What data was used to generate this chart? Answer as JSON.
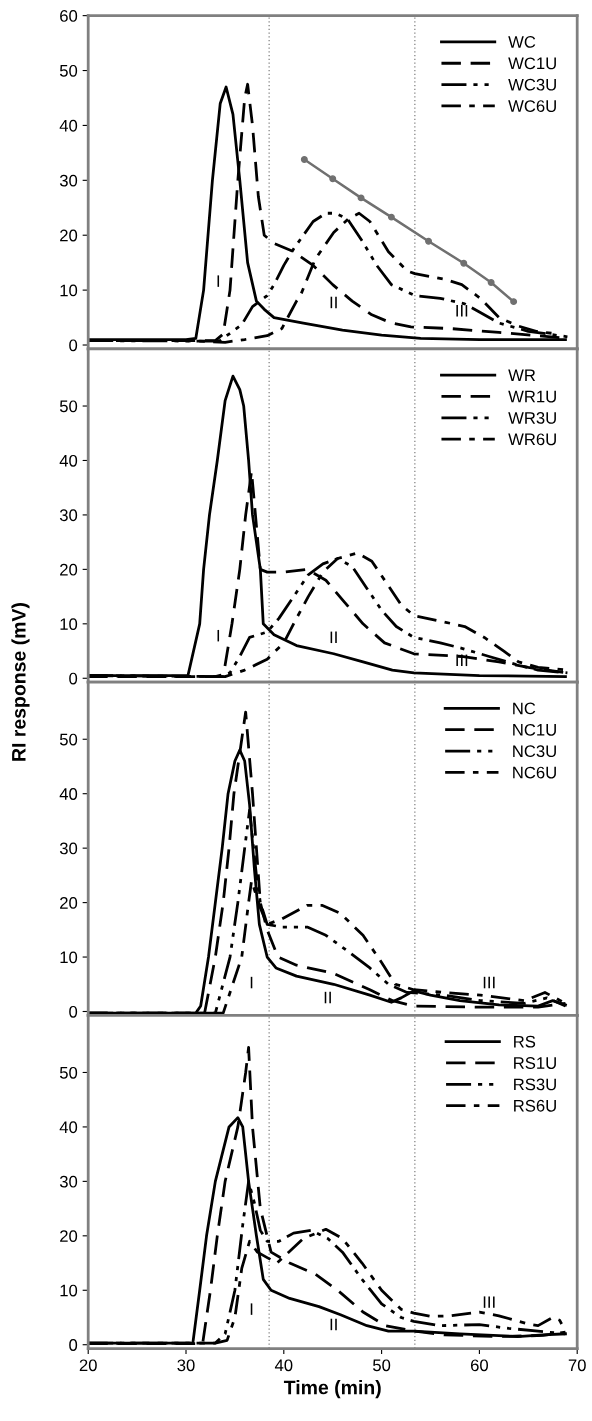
{
  "chart_data": [
    {
      "type": "line",
      "xlim": [
        20,
        70
      ],
      "xticks": [
        20,
        30,
        40,
        50,
        60,
        70
      ],
      "ylim": [
        -0.7,
        60
      ],
      "yticks": [
        0,
        10,
        20,
        30,
        40,
        50,
        60
      ],
      "tick_labels": "y",
      "legend": "top right",
      "grid": false,
      "ref_lines": [
        {
          "axis": "x",
          "value": 38.5,
          "color": "#808080",
          "line_style": "dotted"
        },
        {
          "axis": "x",
          "value": 53.4,
          "color": "#808080",
          "line_style": "dotted"
        }
      ],
      "annotations": [
        "I",
        "II",
        "III"
      ],
      "series": [
        {
          "name": "WC",
          "color": "#000000",
          "line_style": "solid",
          "x": [
            20,
            30,
            31,
            31.8,
            32.7,
            33.5,
            34.1,
            34.8,
            35.5,
            36.3,
            37.2,
            38,
            39,
            42,
            46,
            50,
            54,
            60,
            68.8
          ],
          "values": [
            1,
            1,
            1.2,
            10,
            30,
            44,
            47,
            42,
            30,
            15,
            8,
            6.5,
            5,
            4,
            2.7,
            1.8,
            1.2,
            1,
            1
          ]
        },
        {
          "name": "WC1U",
          "color": "#000000",
          "line_style": "dashed",
          "x": [
            20,
            33,
            33.8,
            34.5,
            35.3,
            36,
            36.3,
            36.8,
            37.4,
            38,
            39,
            41,
            43,
            45,
            47,
            49,
            51,
            53,
            57,
            62,
            66,
            69
          ],
          "values": [
            0.8,
            0.8,
            2,
            10,
            30,
            45,
            47.5,
            40,
            27,
            20,
            18.5,
            17,
            14.5,
            11,
            8,
            5.5,
            4,
            3.3,
            3,
            2.3,
            1.7,
            1.2
          ]
        },
        {
          "name": "WC3U",
          "color": "#000000",
          "line_style": "dashdotdot",
          "x": [
            20,
            33.4,
            35.7,
            36.8,
            38.3,
            39,
            40,
            41,
            42,
            43,
            44.3,
            45.3,
            46.5,
            48,
            49.5,
            51,
            53.4,
            56,
            58.5,
            60,
            62,
            65,
            69
          ],
          "values": [
            0.8,
            0.7,
            3.7,
            7,
            9,
            11,
            14.5,
            17.5,
            20,
            22.5,
            24,
            24,
            23,
            19,
            14.5,
            11,
            9,
            8.5,
            7.5,
            6,
            4,
            2.5,
            1.5
          ]
        },
        {
          "name": "WC6U",
          "color": "#000000",
          "line_style": "dashdot",
          "x": [
            20,
            30,
            34,
            36,
            38.3,
            39.8,
            41.3,
            41.7,
            43.2,
            45.1,
            46.6,
            47.7,
            48.8,
            50.7,
            52.6,
            53.4,
            56.4,
            58.2,
            60.1,
            62,
            63.9,
            65.8,
            68
          ],
          "values": [
            0.8,
            0.8,
            0.5,
            1,
            1.7,
            3,
            8,
            9,
            15.6,
            20.5,
            23,
            24,
            22.5,
            17,
            13.5,
            13,
            12,
            11,
            8.5,
            5,
            3.5,
            2.5,
            2
          ]
        },
        {
          "color": "#707070",
          "line_style": "solid",
          "marker": "circle",
          "x": [
            42.1,
            45,
            47.9,
            51,
            54.8,
            58.4,
            61.2,
            63.5
          ],
          "values": [
            33.8,
            30.3,
            26.8,
            23.3,
            18.9,
            14.9,
            11.4,
            7.9
          ]
        }
      ]
    },
    {
      "type": "line",
      "xlim": [
        20,
        70
      ],
      "xticks": [
        20,
        30,
        40,
        50,
        60,
        70
      ],
      "ylim": [
        -0.7,
        60.5
      ],
      "yticks": [
        0,
        10,
        20,
        30,
        40,
        50
      ],
      "tick_labels": "y",
      "legend": "top right",
      "grid": false,
      "ref_lines": [
        {
          "axis": "x",
          "value": 38.5,
          "color": "#808080",
          "line_style": "dotted"
        },
        {
          "axis": "x",
          "value": 53.4,
          "color": "#808080",
          "line_style": "dotted"
        }
      ],
      "annotations": [
        "I",
        "II",
        "III"
      ],
      "series": [
        {
          "name": "WR",
          "color": "#000000",
          "line_style": "solid",
          "x": [
            20,
            30.2,
            31.4,
            31.8,
            32.4,
            33.2,
            34,
            34.8,
            35.5,
            35.9,
            36.4,
            36.8,
            37.6,
            37.9,
            39,
            41.3,
            45.1,
            48.1,
            51.1,
            53.3,
            60,
            68.8
          ],
          "values": [
            0.5,
            0.5,
            10,
            20,
            30,
            40,
            51,
            55.5,
            53,
            50,
            40,
            30,
            20,
            10,
            8,
            6,
            4.5,
            3,
            1.5,
            1,
            0.5,
            0.3
          ]
        },
        {
          "name": "WR1U",
          "color": "#000000",
          "line_style": "dashed",
          "x": [
            20,
            33.8,
            34.7,
            35.5,
            36.1,
            36.7,
            37.1,
            37.6,
            38.3,
            40,
            42.4,
            44.3,
            46.2,
            48.1,
            50.3,
            53.3,
            58.2,
            62,
            65,
            68.8
          ],
          "values": [
            0.3,
            0.3,
            10,
            20,
            30,
            38,
            30,
            20,
            19.5,
            19.5,
            20,
            18,
            14,
            10,
            6.5,
            4.5,
            4,
            3,
            2,
            1
          ]
        },
        {
          "name": "WR3U",
          "color": "#000000",
          "line_style": "dashdotdot",
          "x": [
            20,
            33,
            34.5,
            35.5,
            36.5,
            38.3,
            39.5,
            41,
            42.5,
            44,
            45.5,
            47,
            48.5,
            50,
            51.5,
            53.3,
            56,
            58.2,
            61,
            63.8,
            66,
            69
          ],
          "values": [
            0.5,
            0.3,
            1,
            4,
            7.5,
            8.5,
            11,
            15,
            19,
            21,
            22,
            20.5,
            16.5,
            12.5,
            9.5,
            7.5,
            6.5,
            5.5,
            4,
            2.5,
            1.5,
            1
          ]
        },
        {
          "name": "WR6U",
          "color": "#000000",
          "line_style": "dashdot",
          "x": [
            20,
            34,
            36,
            38.3,
            40,
            41,
            42.5,
            44,
            45.5,
            47.5,
            49,
            50.5,
            52,
            53.3,
            56,
            58.5,
            60.5,
            62.5,
            64,
            66,
            69
          ],
          "values": [
            0.5,
            0.3,
            1.5,
            3.5,
            6.5,
            10,
            15,
            19.5,
            22,
            23,
            21.5,
            17.5,
            13.5,
            11.5,
            10.5,
            9.5,
            7.5,
            5,
            3,
            2,
            1.5
          ]
        }
      ]
    },
    {
      "type": "line",
      "xlim": [
        20,
        70
      ],
      "xticks": [
        20,
        30,
        40,
        50,
        60,
        70
      ],
      "ylim": [
        -0.7,
        60.5
      ],
      "yticks": [
        0,
        10,
        20,
        30,
        40,
        50
      ],
      "tick_labels": "y",
      "legend": "top right",
      "grid": false,
      "ylabel": "RI response (mV)",
      "ref_lines": [
        {
          "axis": "x",
          "value": 38.5,
          "color": "#808080",
          "line_style": "dotted"
        },
        {
          "axis": "x",
          "value": 53.4,
          "color": "#808080",
          "line_style": "dotted"
        }
      ],
      "annotations": [
        "I",
        "II",
        "III"
      ],
      "series": [
        {
          "name": "NC",
          "color": "#000000",
          "line_style": "solid",
          "x": [
            20,
            31,
            31.5,
            32.3,
            33,
            33.7,
            34.3,
            35,
            35.5,
            36,
            36.5,
            37,
            37.5,
            38.3,
            39.2,
            41.3,
            45.1,
            48.8,
            51,
            52,
            53.3,
            55,
            58,
            62,
            66,
            67.5,
            68.8
          ],
          "values": [
            -0.3,
            -0.3,
            1,
            10,
            20,
            30,
            40,
            46,
            48,
            46,
            38,
            26,
            16,
            10,
            8,
            6.5,
            5,
            3,
            1.7,
            2.5,
            3.8,
            3,
            2,
            1.2,
            1,
            2,
            1.2
          ]
        },
        {
          "name": "NC1U",
          "color": "#000000",
          "line_style": "dashed",
          "x": [
            20,
            31.9,
            33,
            33.8,
            34.4,
            34.9,
            35.7,
            36.1,
            36.8,
            37.2,
            37.6,
            38.3,
            39.4,
            41.3,
            45.1,
            48.8,
            51.1,
            53.3,
            60,
            66,
            68.8
          ],
          "values": [
            -0.3,
            -0.3,
            10,
            20,
            30,
            40,
            50,
            55,
            40,
            30,
            20,
            15,
            10,
            8.5,
            7,
            4,
            2,
            1,
            0.8,
            0.8,
            1.5
          ]
        },
        {
          "name": "NC3U",
          "color": "#000000",
          "line_style": "dashdotdot",
          "x": [
            20,
            33,
            34.5,
            35.3,
            36,
            36.5,
            37.2,
            37.6,
            38.3,
            39.8,
            42.4,
            44.3,
            46.6,
            48.8,
            50.7,
            52.6,
            56.4,
            60.1,
            64.6,
            66.9,
            68.8
          ],
          "values": [
            -0.3,
            -0.3,
            10,
            20,
            30,
            37,
            25,
            20,
            16,
            15.5,
            15.5,
            14,
            11,
            8,
            5,
            3.5,
            3,
            2,
            1.5,
            2.5,
            1
          ]
        },
        {
          "name": "NC6U",
          "color": "#000000",
          "line_style": "dashdot",
          "x": [
            20,
            33.8,
            35.7,
            36.4,
            36.7,
            37.6,
            38.3,
            39.8,
            42.4,
            43.9,
            45.8,
            48.1,
            50,
            51.4,
            53.3,
            56.4,
            60.1,
            64.6,
            66.7,
            68.8
          ],
          "values": [
            -0.3,
            -0.3,
            10,
            20,
            24,
            19,
            16,
            17,
            19.5,
            19.5,
            18,
            14,
            9,
            5,
            4,
            3.5,
            3,
            2,
            3.5,
            1.5
          ]
        }
      ]
    },
    {
      "type": "line",
      "xlim": [
        20,
        70
      ],
      "xticks": [
        20,
        30,
        40,
        50,
        60,
        70
      ],
      "ylim": [
        -0.7,
        60.5
      ],
      "yticks": [
        0,
        10,
        20,
        30,
        40,
        50
      ],
      "legend": "top right",
      "grid": false,
      "xlabel": "Time (min)",
      "ref_lines": [
        {
          "axis": "x",
          "value": 38.5,
          "color": "#808080",
          "line_style": "dotted"
        },
        {
          "axis": "x",
          "value": 53.4,
          "color": "#808080",
          "line_style": "dotted"
        }
      ],
      "annotations": [
        "I",
        "II",
        "III"
      ],
      "series": [
        {
          "name": "RS",
          "color": "#000000",
          "line_style": "solid",
          "x": [
            20,
            30.7,
            31.4,
            32.1,
            33,
            34.4,
            35.3,
            35.8,
            36.4,
            37.2,
            37.9,
            38.7,
            40.6,
            43.6,
            45.8,
            48.5,
            50.7,
            53.3,
            58,
            63.9,
            66.5,
            68.8
          ],
          "values": [
            0.3,
            0.3,
            10,
            20,
            30,
            40,
            41.7,
            40,
            30,
            20,
            12,
            10,
            8.5,
            7,
            5.5,
            3.5,
            2.5,
            2.5,
            2,
            1.5,
            1.8,
            2
          ]
        },
        {
          "name": "RS1U",
          "color": "#000000",
          "line_style": "dashed",
          "x": [
            20,
            31.7,
            32.5,
            33.2,
            34,
            35.3,
            36.1,
            36.4,
            36.8,
            37.6,
            38.7,
            40.6,
            43.2,
            45.5,
            48.1,
            50.4,
            53.3,
            56.4,
            62,
            66.5,
            68.8
          ],
          "values": [
            0.2,
            0.2,
            10,
            20,
            30,
            40,
            50,
            54.6,
            40,
            25,
            17,
            15,
            13,
            10,
            6,
            3.5,
            2.5,
            1.8,
            1.5,
            1.7,
            2.3
          ]
        },
        {
          "name": "RS3U",
          "color": "#000000",
          "line_style": "dashdotdot",
          "x": [
            20,
            33,
            34,
            35,
            35.8,
            36.4,
            37,
            37.6,
            38.3,
            39.5,
            41,
            42.8,
            44.5,
            46,
            48,
            50,
            52,
            53.3,
            56,
            60,
            63,
            66,
            68.8
          ],
          "values": [
            0.3,
            0.3,
            2,
            10,
            22,
            30,
            26,
            21,
            19,
            19,
            20.5,
            21,
            19.5,
            17,
            12,
            7.5,
            5,
            4.3,
            3.5,
            3.7,
            3,
            2.5,
            2
          ]
        },
        {
          "name": "RS6U",
          "color": "#000000",
          "line_style": "dashdot",
          "x": [
            20,
            33,
            34.2,
            35,
            35.7,
            36.5,
            37.3,
            38.3,
            39.3,
            40.5,
            42,
            44.3,
            46,
            48,
            50,
            52,
            53.3,
            55,
            57,
            60,
            62,
            65,
            66,
            67.5,
            68.2,
            68.8
          ],
          "values": [
            0.3,
            0.3,
            0.8,
            5,
            14,
            19,
            17,
            16,
            15,
            17,
            19.5,
            21.2,
            19.5,
            15,
            10,
            6.5,
            5.8,
            5.2,
            5.3,
            6,
            5.3,
            3.8,
            3.5,
            5,
            4.5,
            2.5
          ]
        }
      ]
    }
  ]
}
